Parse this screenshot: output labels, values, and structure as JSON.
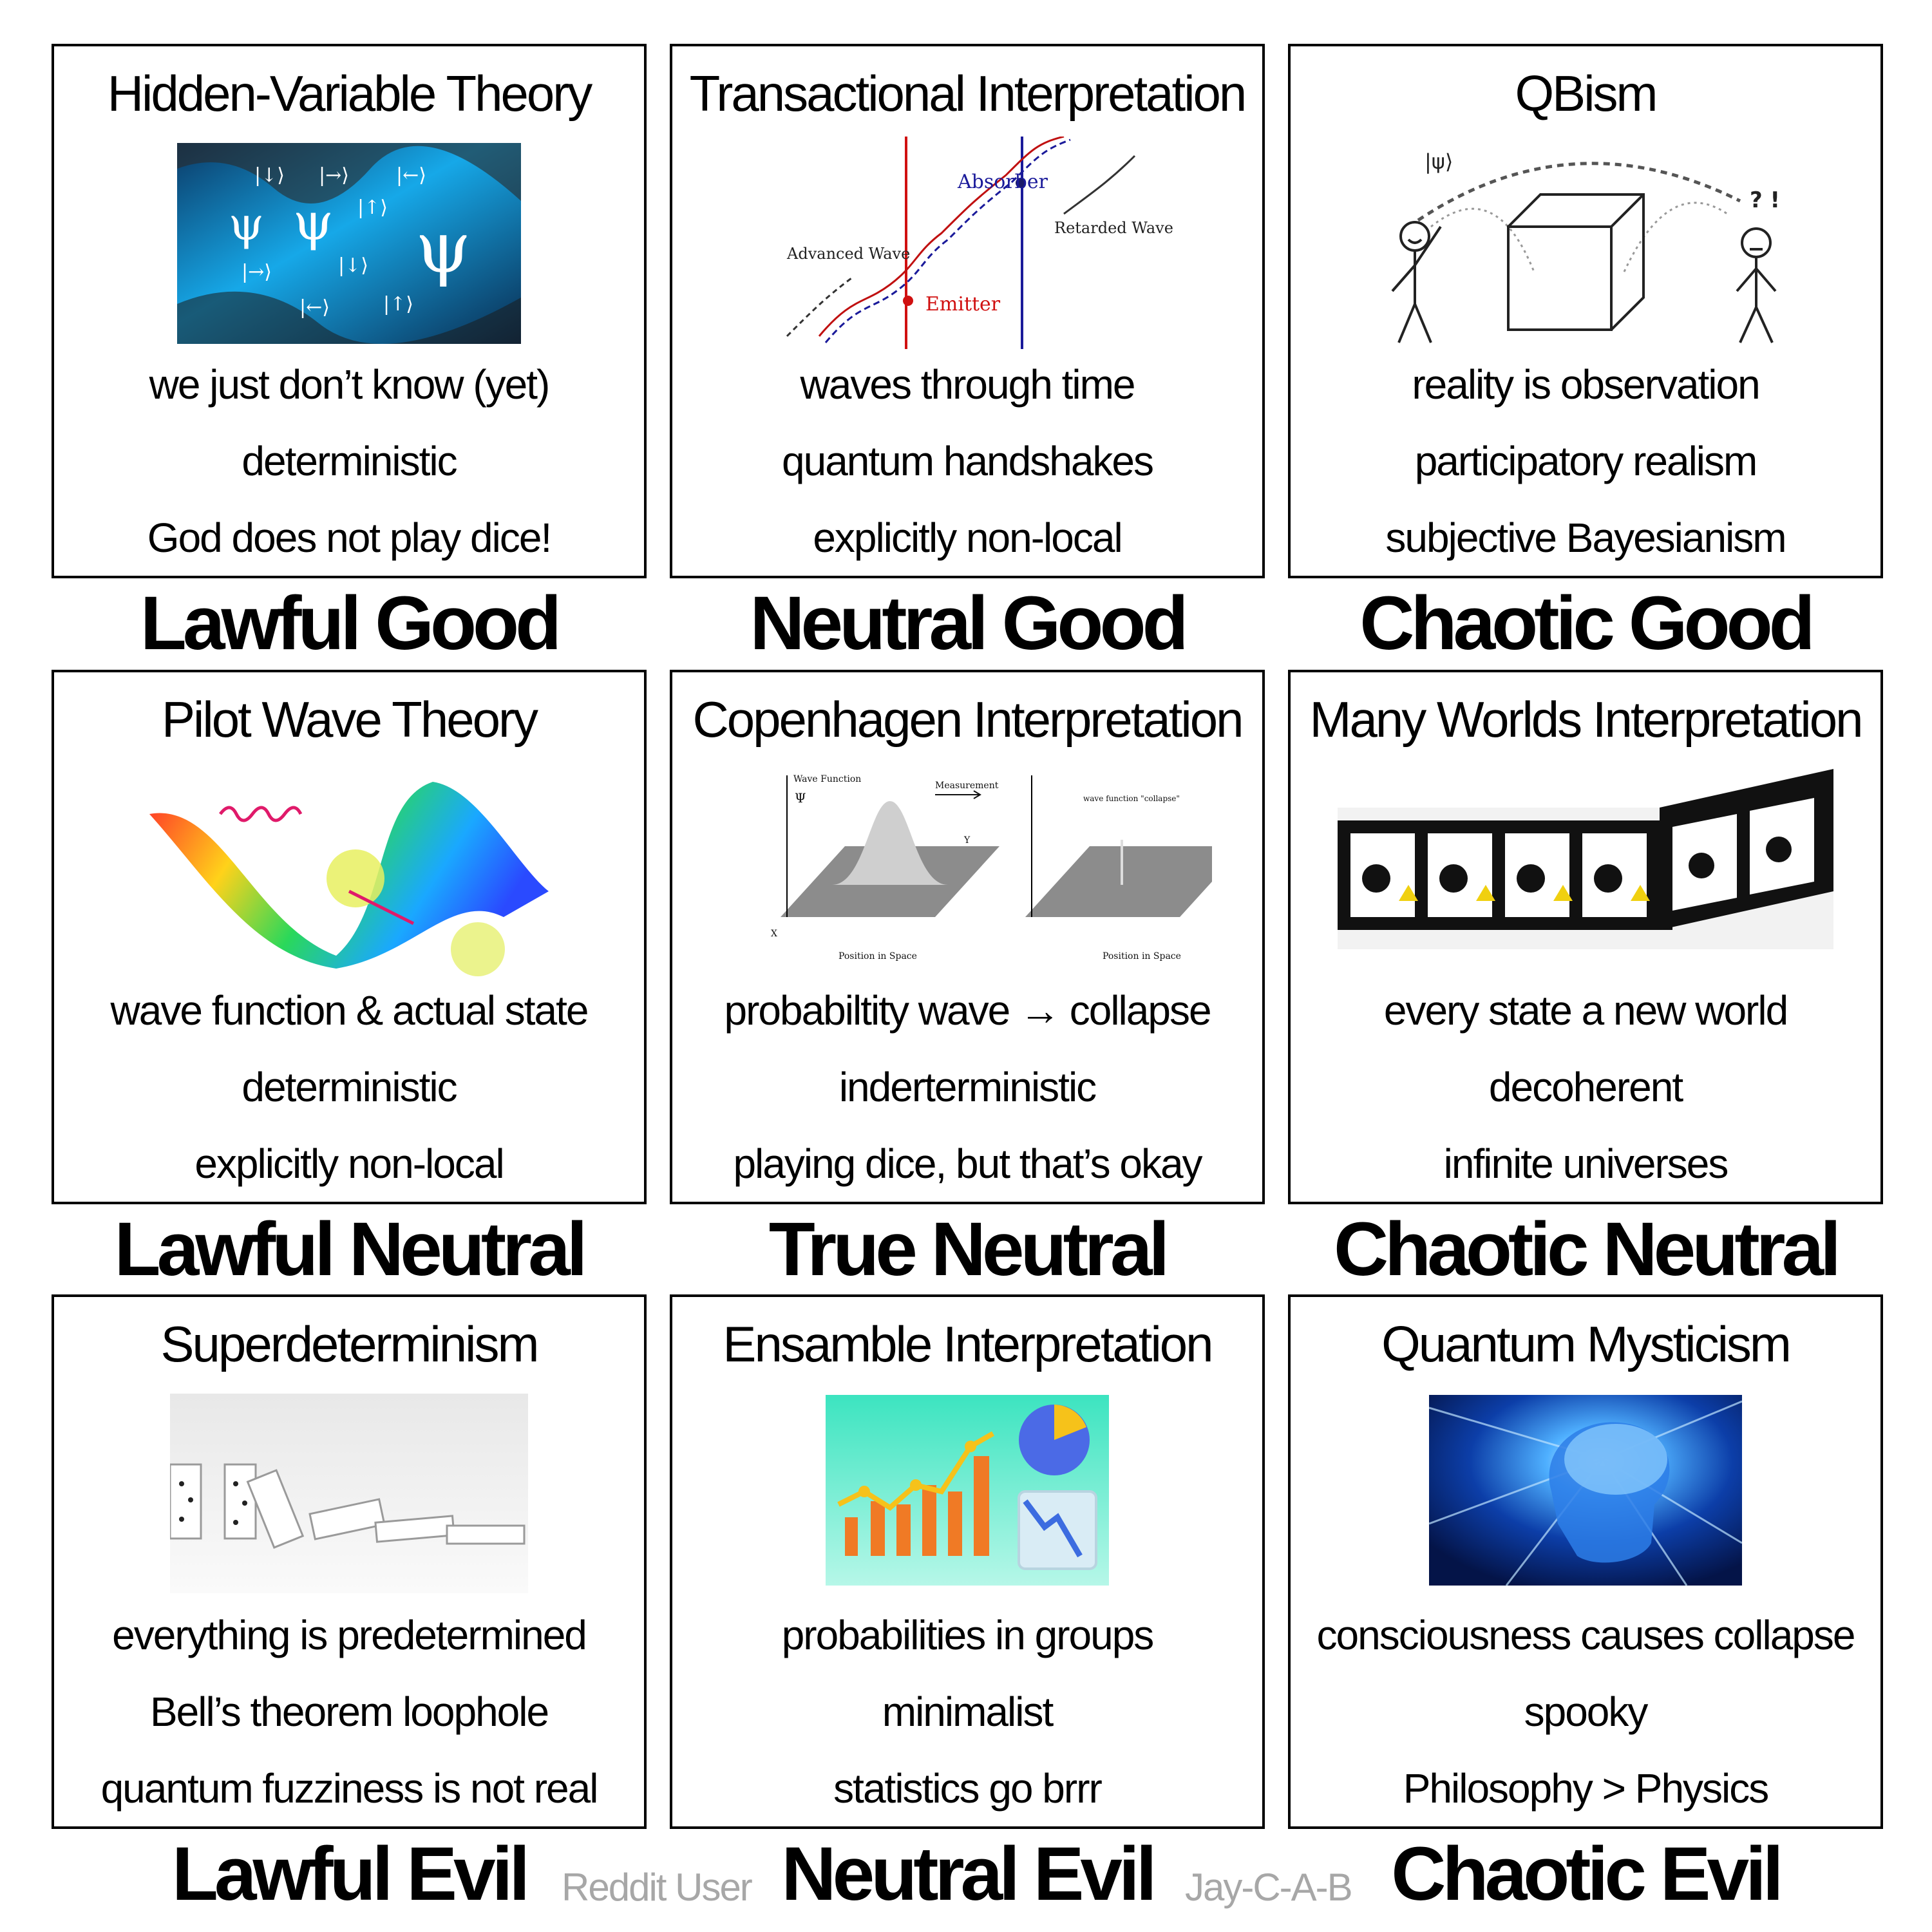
{
  "cells": [
    {
      "title": "Hidden-Variable Theory",
      "lines": [
        "we just don’t know (yet)",
        "deterministic",
        "God does not play dice!"
      ]
    },
    {
      "title": "Transactional Interpretation",
      "lines": [
        "waves through time",
        "quantum handshakes",
        "explicitly non-local"
      ],
      "figure": {
        "absorber": "Absorber",
        "emitter": "Emitter",
        "advanced": "Advanced Wave",
        "retarded": "Retarded Wave"
      }
    },
    {
      "title": "QBism",
      "lines": [
        "reality is observation",
        "participatory realism",
        "subjective Bayesianism"
      ],
      "figure": {
        "psi": "|ψ⟩",
        "marks": "? !"
      }
    },
    {
      "title": "Pilot Wave Theory",
      "lines": [
        "wave function & actual state",
        "deterministic",
        "explicitly non-local"
      ]
    },
    {
      "title": "Copenhagen Interpretation",
      "lines": [
        "probabiltity wave → collapse",
        "inderterministic",
        "playing dice, but that’s okay"
      ],
      "figure": {
        "wave_function": "Wave Function",
        "psi": "Ψ",
        "measurement": "Measurement",
        "collapse": "wave function \"collapse\"",
        "axis_x": "X",
        "axis_y": "Y",
        "position": "Position in Space"
      }
    },
    {
      "title": "Many Worlds Interpretation",
      "lines": [
        "every state a new world",
        "decoherent",
        "infinite universes"
      ]
    },
    {
      "title": "Superdeterminism",
      "lines": [
        "everything is predetermined",
        "Bell’s theorem loophole",
        "quantum fuzziness is not real"
      ]
    },
    {
      "title": "Ensamble Interpretation",
      "lines": [
        "probabilities in groups",
        "minimalist",
        "statistics go brrr"
      ]
    },
    {
      "title": "Quantum Mysticism",
      "lines": [
        "consciousness causes collapse",
        "spooky",
        "Philosophy > Physics"
      ]
    }
  ],
  "alignments": [
    "Lawful Good",
    "Neutral Good",
    "Chaotic Good",
    "Lawful Neutral",
    "True Neutral",
    "Chaotic Neutral",
    "Lawful Evil",
    "Neutral Evil",
    "Chaotic Evil"
  ],
  "credits": {
    "left": "Reddit User",
    "right": "Jay-C-A-B"
  },
  "colors": {
    "border": "#000000",
    "credit": "#a7a7a7"
  }
}
